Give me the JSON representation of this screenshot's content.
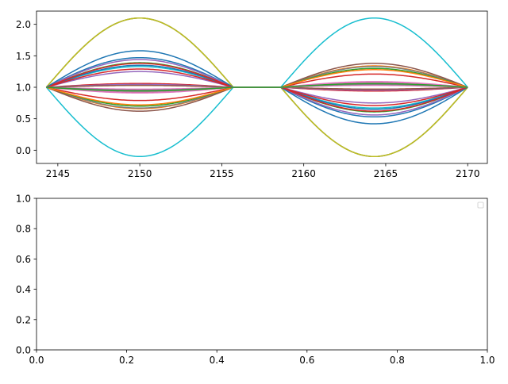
{
  "chart_data": [
    {
      "type": "line",
      "xlim": [
        2143.7,
        2171.2
      ],
      "ylim": [
        -0.21,
        2.21
      ],
      "xticks": [
        2145,
        2150,
        2155,
        2160,
        2165,
        2170
      ],
      "yticks": [
        0.0,
        0.5,
        1.0,
        1.5,
        2.0
      ],
      "x_start": 2144.3,
      "x_end": 2170,
      "flat_start": 2155.7,
      "flat_end": 2158.6,
      "amplitudes": [
        0.47,
        -0.34,
        0.39,
        -0.21,
        0.44,
        -0.08,
        -0.09,
        -0.33,
        1.1,
        0.33,
        0.35,
        0.03,
        -0.3,
        0.38,
        0.25,
        -0.38,
        -0.07,
        1.1,
        1.1,
        -1.1,
        0.58,
        -0.28,
        -0.05,
        0.29
      ],
      "colors": [
        "#1f77b4",
        "#ff7f0e",
        "#2ca02c",
        "#d62728",
        "#9467bd",
        "#8c564b",
        "#e377c2",
        "#7f7f7f",
        "#bcbd22",
        "#17becf"
      ],
      "grid": false
    },
    {
      "type": "line",
      "xlim": [
        0,
        1
      ],
      "ylim": [
        0,
        1
      ],
      "xticks": [
        0.0,
        0.2,
        0.4,
        0.6,
        0.8,
        1.0
      ],
      "yticks": [
        0.0,
        0.2,
        0.4,
        0.6,
        0.8,
        1.0
      ],
      "legend": "top-right",
      "series": []
    }
  ]
}
